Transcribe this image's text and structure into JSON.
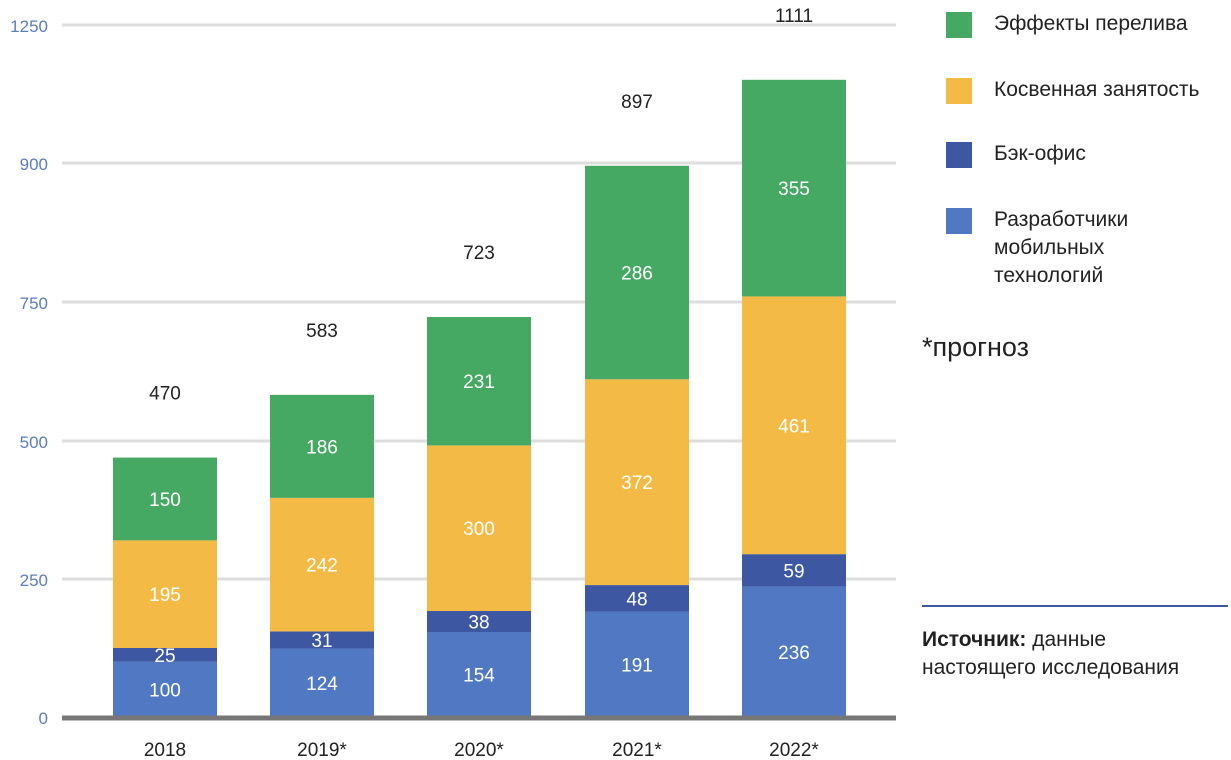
{
  "chart_data": {
    "type": "bar",
    "stacked": true,
    "categories": [
      "2018",
      "2019*",
      "2020*",
      "2021*",
      "2022*"
    ],
    "series": [
      {
        "name": "Разработчики мобильных технологий",
        "color": "#5179c3",
        "values": [
          100,
          124,
          154,
          191,
          236
        ]
      },
      {
        "name": "Бэк-офис",
        "color": "#3d57a3",
        "values": [
          25,
          31,
          38,
          48,
          59
        ]
      },
      {
        "name": "Косвенная занятость",
        "color": "#f3bb45",
        "values": [
          195,
          242,
          300,
          372,
          461
        ]
      },
      {
        "name": "Эффекты перелива",
        "color": "#46a963",
        "values": [
          150,
          186,
          231,
          286,
          355
        ]
      }
    ],
    "totals": [
      470,
      583,
      723,
      897,
      1111
    ],
    "yticks": [
      0,
      250,
      500,
      750,
      900,
      1250
    ],
    "ylim": [
      0,
      1250
    ],
    "grid": true,
    "legend_position": "right"
  },
  "legend": {
    "items": [
      {
        "label": "Эффекты перелива",
        "color": "#46a963"
      },
      {
        "label": "Косвенная занятость",
        "color": "#f3bb45"
      },
      {
        "label": "Бэк-офис",
        "color": "#3d57a3"
      },
      {
        "label": "Разработчики мобильных технологий",
        "color": "#5179c3"
      }
    ]
  },
  "note": "*прогноз",
  "source": {
    "label": "Источник:",
    "text": " данные настоящего исследования"
  },
  "colors": {
    "tick_label": "#5c7cc0",
    "grid": "#dddddd",
    "axis": "#777777",
    "divider": "#3d57a3"
  }
}
